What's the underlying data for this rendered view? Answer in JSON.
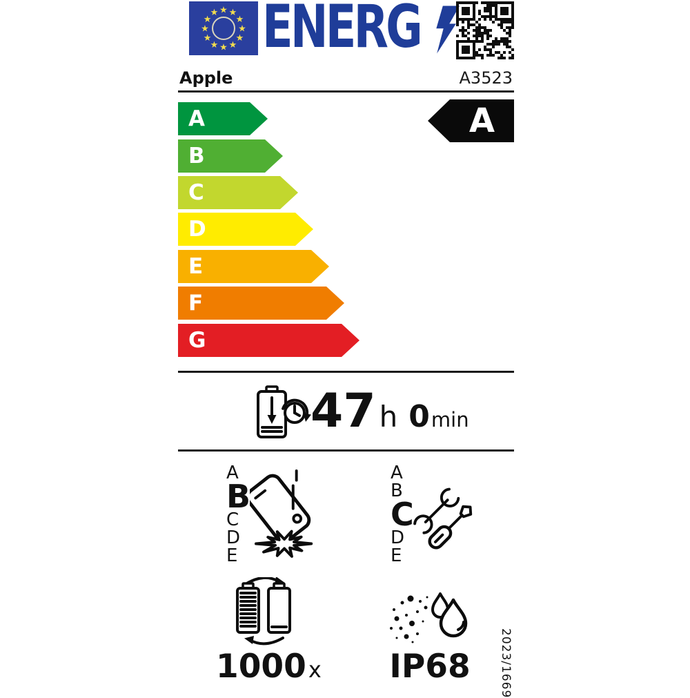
{
  "colors": {
    "flag_blue": "#2A3F9E",
    "star_yellow": "#F3DD4E",
    "eu_text_blue": "#1F3D99",
    "indicator_black": "#0A0A0A",
    "class_a": "#00953F",
    "class_b": "#50AF33",
    "class_c": "#C2D72E",
    "class_d": "#FFEC00",
    "class_e": "#F9B000",
    "class_f": "#F07D00",
    "class_g": "#E31E24"
  },
  "header": {
    "energy_logo_text": "ENERG",
    "eu_flag_icon": "eu-flag",
    "lightning_icon": "lightning-bolt",
    "qr_icon": "qr-code"
  },
  "product": {
    "brand": "Apple",
    "model": "A3523"
  },
  "energy_scale": {
    "classes": [
      {
        "label": "A",
        "color": "#00953F"
      },
      {
        "label": "B",
        "color": "#50AF33"
      },
      {
        "label": "C",
        "color": "#C2D72E"
      },
      {
        "label": "D",
        "color": "#FFEC00"
      },
      {
        "label": "E",
        "color": "#F9B000"
      },
      {
        "label": "F",
        "color": "#F07D00"
      },
      {
        "label": "G",
        "color": "#E31E24"
      }
    ],
    "rated_class": "A"
  },
  "battery_endurance": {
    "hours": "47",
    "hours_unit": "h",
    "minutes": "0",
    "minutes_unit": "min"
  },
  "drop_resistance": {
    "scale": [
      "A",
      "B",
      "C",
      "D",
      "E"
    ],
    "rating": "B"
  },
  "repairability": {
    "scale": [
      "A",
      "B",
      "C",
      "D",
      "E"
    ],
    "rating": "C"
  },
  "battery_cycles": {
    "value": "1000",
    "unit": "x"
  },
  "ingress_protection": {
    "rating": "IP68"
  },
  "regulation": {
    "number": "2023/1669"
  }
}
